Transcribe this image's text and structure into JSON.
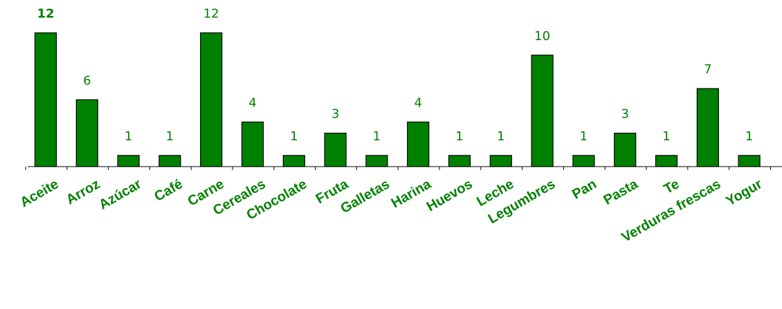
{
  "chart_data": {
    "type": "bar",
    "categories": [
      "Aceite",
      "Arroz",
      "Azúcar",
      "Café",
      "Carne",
      "Cereales",
      "Chocolate",
      "Fruta",
      "Galletas",
      "Harina",
      "Huevos",
      "Leche",
      "Legumbres",
      "Pan",
      "Pasta",
      "Te",
      "Verduras frescas",
      "Yogur"
    ],
    "values": [
      12,
      6,
      1,
      1,
      12,
      4,
      1,
      3,
      1,
      4,
      1,
      1,
      10,
      1,
      3,
      1,
      7,
      1
    ],
    "data_labels": [
      "12",
      "6",
      "1",
      "1",
      "12",
      "4",
      "1",
      "3",
      "1",
      "4",
      "1",
      "1",
      "10",
      "1",
      "3",
      "1",
      "7",
      "1"
    ],
    "ylim": [
      0,
      12
    ],
    "bar_color": "#008000",
    "label_color": "#008000",
    "grid": false,
    "legend": "none",
    "title": "",
    "xlabel": "",
    "ylabel": ""
  }
}
